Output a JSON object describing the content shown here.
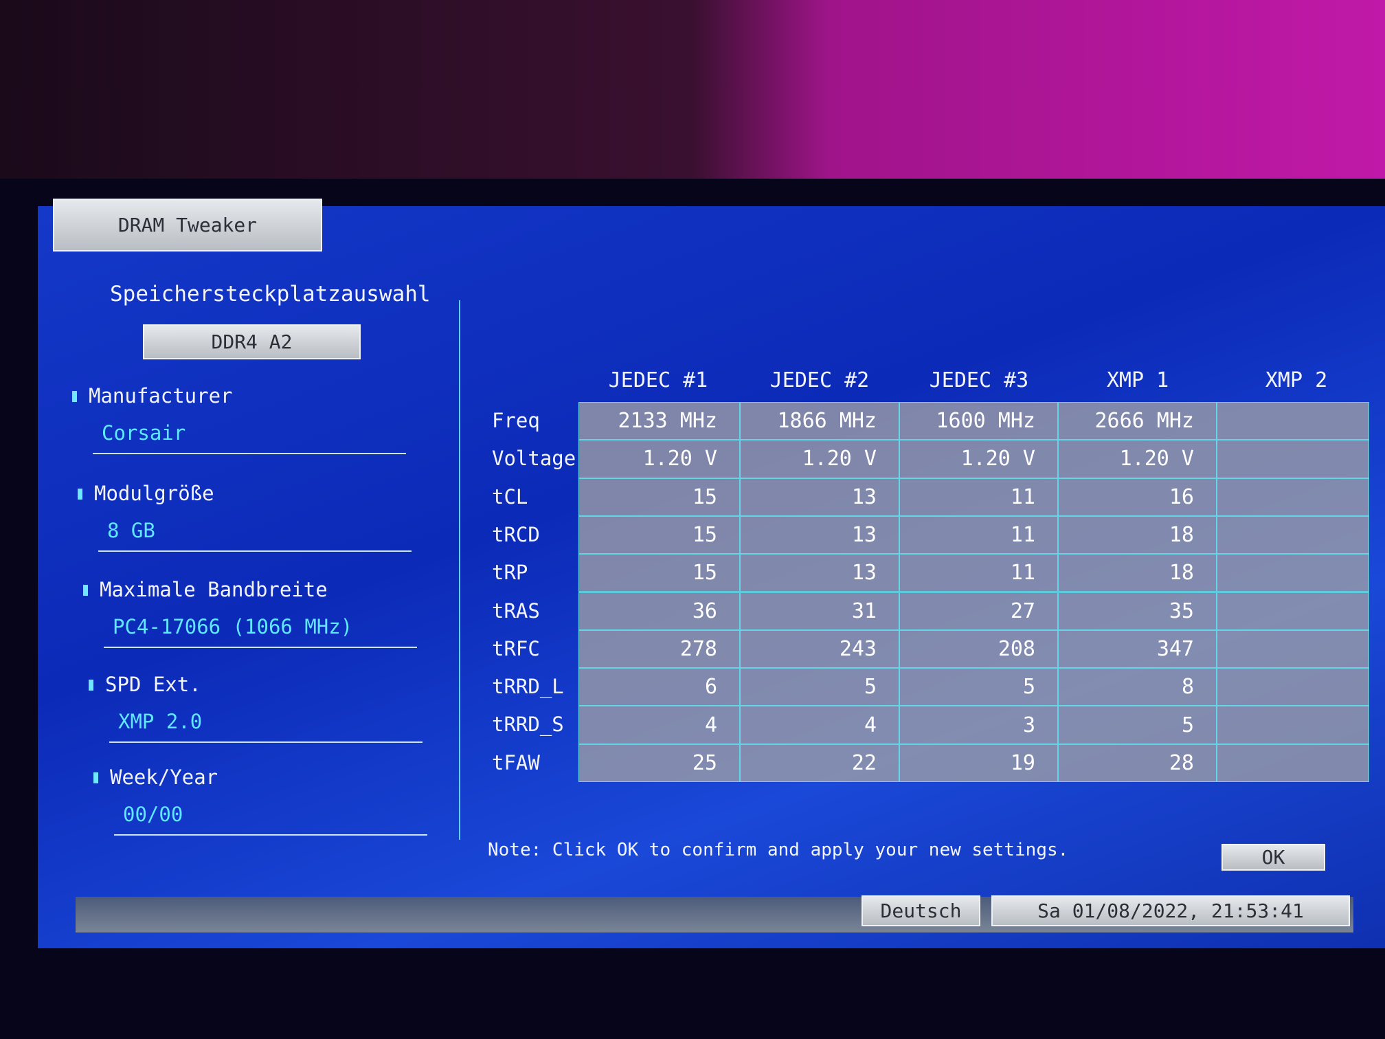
{
  "dialog": {
    "title": "DRAM Tweaker"
  },
  "slot_selection": {
    "heading": "Speichersteckplatzauswahl",
    "slot": "DDR4 A2"
  },
  "fields": [
    {
      "label": "Manufacturer",
      "value": "Corsair"
    },
    {
      "label": "Modulgröße",
      "value": "8 GB"
    },
    {
      "label": "Maximale Bandbreite",
      "value": "PC4-17066 (1066 MHz)"
    },
    {
      "label": "SPD Ext.",
      "value": "XMP 2.0"
    },
    {
      "label": "Week/Year",
      "value": "00/00"
    }
  ],
  "table": {
    "columns": [
      "JEDEC #1",
      "JEDEC #2",
      "JEDEC #3",
      "XMP 1",
      "XMP 2"
    ],
    "rows": [
      {
        "label": "Freq",
        "values": [
          "2133 MHz",
          "1866 MHz",
          "1600 MHz",
          "2666 MHz",
          null
        ]
      },
      {
        "label": "Voltage",
        "values": [
          "1.20 V",
          "1.20 V",
          "1.20 V",
          "1.20 V",
          null
        ]
      },
      {
        "label": "tCL",
        "values": [
          15,
          13,
          11,
          16,
          null
        ]
      },
      {
        "label": "tRCD",
        "values": [
          15,
          13,
          11,
          18,
          null
        ]
      },
      {
        "label": "tRP",
        "values": [
          15,
          13,
          11,
          18,
          null
        ]
      },
      {
        "label": "tRAS",
        "values": [
          36,
          31,
          27,
          35,
          null
        ]
      },
      {
        "label": "tRFC",
        "values": [
          278,
          243,
          208,
          347,
          null
        ]
      },
      {
        "label": "tRRD_L",
        "values": [
          6,
          5,
          5,
          8,
          null
        ]
      },
      {
        "label": "tRRD_S",
        "values": [
          4,
          4,
          3,
          5,
          null
        ]
      },
      {
        "label": "tFAW",
        "values": [
          25,
          22,
          19,
          28,
          null
        ]
      }
    ]
  },
  "note": "Note: Click OK to confirm and apply your new settings.",
  "ok_button": "OK",
  "footer": {
    "language": "Deutsch",
    "datetime": "Sa 01/08/2022, 21:53:41"
  }
}
